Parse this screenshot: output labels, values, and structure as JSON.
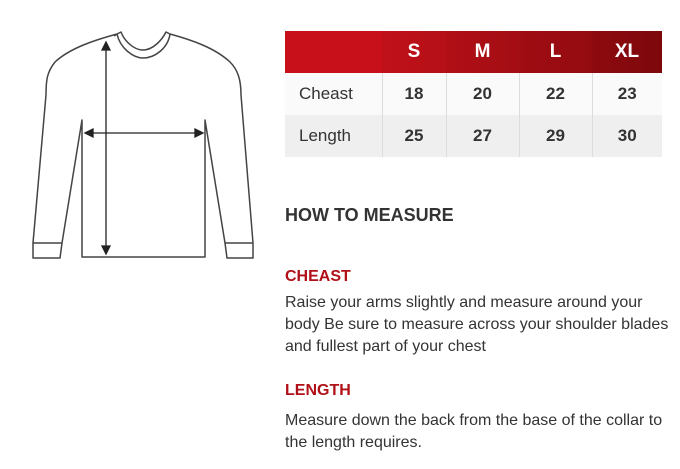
{
  "table": {
    "sizes": [
      "S",
      "M",
      "L",
      "XL"
    ],
    "rows": [
      {
        "label": "Cheast",
        "values": [
          "18",
          "20",
          "22",
          "23"
        ]
      },
      {
        "label": "Length",
        "values": [
          "25",
          "27",
          "29",
          "30"
        ]
      }
    ]
  },
  "how_to": {
    "title": "HOW TO MEASURE",
    "sections": [
      {
        "title": "CHEAST",
        "text": "Raise your arms slightly and measure around your body Be sure to measure across your shoulder blades and fullest part of your chest"
      },
      {
        "title": "LENGTH",
        "text": "Measure down the back from the base of the collar to the length requires."
      }
    ]
  },
  "colors": {
    "header_red": "#c8101a",
    "header_dark_red": "#7c080c",
    "section_title": "#b01018"
  },
  "icons": {
    "garment": "sweater-illustration"
  }
}
